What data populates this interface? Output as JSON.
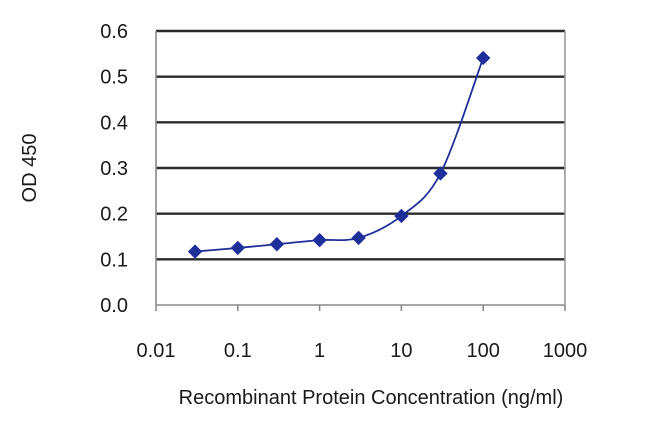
{
  "chart_data": {
    "type": "line",
    "title": "",
    "xlabel": "Recombinant Protein Concentration (ng/ml)",
    "ylabel": "OD 450",
    "x_scale": "log",
    "xlim": [
      0.01,
      1000
    ],
    "ylim": [
      0,
      0.6
    ],
    "x_ticks": [
      "0.01",
      "0.1",
      "1",
      "10",
      "100",
      "1000"
    ],
    "y_ticks": [
      "0.0",
      "0.1",
      "0.2",
      "0.3",
      "0.4",
      "0.5",
      "0.6"
    ],
    "grid": "horizontal",
    "legend": "none",
    "series": [
      {
        "color": "#1f2f9a",
        "marker": "diamond",
        "x": [
          0.03,
          0.1,
          0.3,
          1,
          3,
          10,
          30,
          100
        ],
        "y": [
          0.117,
          0.125,
          0.133,
          0.142,
          0.147,
          0.195,
          0.288,
          0.541
        ]
      }
    ]
  }
}
